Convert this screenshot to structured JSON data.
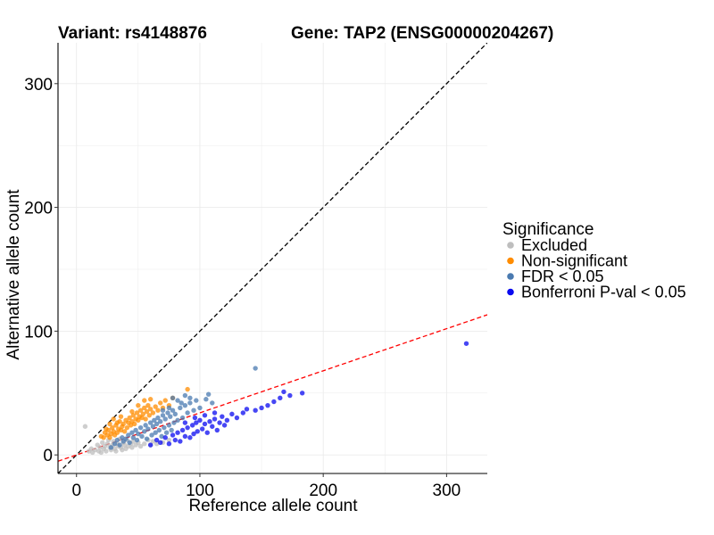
{
  "chart_data": {
    "type": "scatter",
    "title_left": "Variant: rs4148876",
    "title_right": "Gene: TAP2 (ENSG00000204267)",
    "xlabel": "Reference allele count",
    "ylabel": "Alternative allele count",
    "xlim": [
      -15,
      333
    ],
    "ylim": [
      -15,
      333
    ],
    "xticks": [
      0,
      100,
      200,
      300
    ],
    "yticks": [
      0,
      100,
      200,
      300
    ],
    "reference_lines": [
      {
        "name": "identity",
        "slope": 1,
        "intercept": 0,
        "style": "dashed",
        "color": "#000000"
      },
      {
        "name": "ratio-fit",
        "slope": 0.34,
        "intercept": 0,
        "style": "dashed",
        "color": "#ff0000"
      }
    ],
    "legend": {
      "title": "Significance",
      "entries": [
        {
          "label": "Excluded",
          "color": "#bebebe"
        },
        {
          "label": "Non-significant",
          "color": "#ff8c00"
        },
        {
          "label": "FDR < 0.05",
          "color": "#4a7ab0"
        },
        {
          "label": "Bonferroni P-val < 0.05",
          "color": "#0a0af0"
        }
      ]
    },
    "series": [
      {
        "name": "Excluded",
        "color": "#bebebe",
        "points": [
          [
            7,
            23
          ],
          [
            10,
            3
          ],
          [
            12,
            5
          ],
          [
            13,
            2
          ],
          [
            15,
            4
          ],
          [
            17,
            8
          ],
          [
            18,
            3
          ],
          [
            19,
            6
          ],
          [
            20,
            2
          ],
          [
            21,
            10
          ],
          [
            22,
            5
          ],
          [
            23,
            7
          ],
          [
            24,
            3
          ],
          [
            25,
            9
          ],
          [
            26,
            12
          ],
          [
            27,
            6
          ],
          [
            28,
            4
          ],
          [
            29,
            8
          ],
          [
            30,
            11
          ],
          [
            31,
            5
          ],
          [
            32,
            3
          ],
          [
            33,
            9
          ],
          [
            34,
            7
          ],
          [
            35,
            13
          ],
          [
            36,
            6
          ],
          [
            37,
            4
          ],
          [
            38,
            10
          ],
          [
            39,
            8
          ],
          [
            40,
            5
          ],
          [
            41,
            12
          ],
          [
            42,
            7
          ],
          [
            44,
            9
          ],
          [
            45,
            6
          ],
          [
            46,
            11
          ],
          [
            48,
            8
          ],
          [
            50,
            10
          ],
          [
            52,
            7
          ],
          [
            55,
            9
          ],
          [
            58,
            12
          ],
          [
            60,
            8
          ],
          [
            62,
            11
          ],
          [
            65,
            9
          ],
          [
            70,
            10
          ],
          [
            75,
            12
          ]
        ]
      },
      {
        "name": "Non-significant",
        "color": "#ff8c00",
        "points": [
          [
            20,
            15
          ],
          [
            22,
            14
          ],
          [
            23,
            18
          ],
          [
            25,
            16
          ],
          [
            26,
            20
          ],
          [
            27,
            14
          ],
          [
            28,
            17
          ],
          [
            29,
            22
          ],
          [
            30,
            19
          ],
          [
            31,
            16
          ],
          [
            32,
            24
          ],
          [
            33,
            18
          ],
          [
            34,
            21
          ],
          [
            35,
            27
          ],
          [
            36,
            20
          ],
          [
            37,
            23
          ],
          [
            38,
            25
          ],
          [
            39,
            19
          ],
          [
            40,
            28
          ],
          [
            41,
            22
          ],
          [
            42,
            26
          ],
          [
            43,
            30
          ],
          [
            44,
            24
          ],
          [
            45,
            27
          ],
          [
            46,
            32
          ],
          [
            47,
            25
          ],
          [
            48,
            29
          ],
          [
            49,
            34
          ],
          [
            50,
            28
          ],
          [
            51,
            31
          ],
          [
            52,
            36
          ],
          [
            53,
            30
          ],
          [
            54,
            33
          ],
          [
            55,
            38
          ],
          [
            56,
            29
          ],
          [
            57,
            35
          ],
          [
            58,
            40
          ],
          [
            59,
            32
          ],
          [
            60,
            37
          ],
          [
            62,
            34
          ],
          [
            64,
            39
          ],
          [
            66,
            36
          ],
          [
            68,
            42
          ],
          [
            70,
            38
          ],
          [
            72,
            44
          ],
          [
            75,
            40
          ],
          [
            78,
            46
          ],
          [
            90,
            53
          ],
          [
            30,
            29
          ],
          [
            33,
            26
          ],
          [
            36,
            31
          ],
          [
            24,
            21
          ],
          [
            27,
            25
          ],
          [
            45,
            35
          ],
          [
            50,
            40
          ],
          [
            55,
            44
          ],
          [
            60,
            45
          ]
        ]
      },
      {
        "name": "FDR < 0.05",
        "color": "#4a7ab0",
        "points": [
          [
            28,
            6
          ],
          [
            31,
            9
          ],
          [
            33,
            12
          ],
          [
            35,
            8
          ],
          [
            37,
            14
          ],
          [
            38,
            11
          ],
          [
            40,
            13
          ],
          [
            42,
            16
          ],
          [
            43,
            10
          ],
          [
            45,
            18
          ],
          [
            46,
            14
          ],
          [
            48,
            20
          ],
          [
            49,
            12
          ],
          [
            50,
            17
          ],
          [
            52,
            22
          ],
          [
            53,
            15
          ],
          [
            55,
            19
          ],
          [
            56,
            24
          ],
          [
            57,
            13
          ],
          [
            58,
            21
          ],
          [
            60,
            26
          ],
          [
            61,
            16
          ],
          [
            62,
            23
          ],
          [
            63,
            28
          ],
          [
            64,
            18
          ],
          [
            65,
            25
          ],
          [
            66,
            30
          ],
          [
            67,
            20
          ],
          [
            68,
            27
          ],
          [
            69,
            15
          ],
          [
            70,
            32
          ],
          [
            71,
            22
          ],
          [
            72,
            29
          ],
          [
            73,
            18
          ],
          [
            74,
            34
          ],
          [
            75,
            24
          ],
          [
            76,
            31
          ],
          [
            77,
            20
          ],
          [
            78,
            36
          ],
          [
            79,
            26
          ],
          [
            80,
            33
          ],
          [
            82,
            28
          ],
          [
            84,
            38
          ],
          [
            86,
            30
          ],
          [
            88,
            40
          ],
          [
            90,
            34
          ],
          [
            92,
            42
          ],
          [
            95,
            36
          ],
          [
            97,
            44
          ],
          [
            100,
            38
          ],
          [
            105,
            45
          ],
          [
            110,
            42
          ],
          [
            78,
            46
          ],
          [
            82,
            44
          ],
          [
            88,
            48
          ],
          [
            107,
            49
          ],
          [
            145,
            70
          ],
          [
            70,
            36
          ],
          [
            75,
            38
          ],
          [
            85,
            42
          ],
          [
            92,
            46
          ]
        ]
      },
      {
        "name": "Bonferroni P-val < 0.05",
        "color": "#0a0af0",
        "points": [
          [
            60,
            8
          ],
          [
            65,
            12
          ],
          [
            68,
            10
          ],
          [
            72,
            14
          ],
          [
            75,
            9
          ],
          [
            78,
            16
          ],
          [
            80,
            12
          ],
          [
            82,
            18
          ],
          [
            84,
            11
          ],
          [
            86,
            20
          ],
          [
            88,
            15
          ],
          [
            90,
            22
          ],
          [
            92,
            14
          ],
          [
            94,
            24
          ],
          [
            95,
            17
          ],
          [
            97,
            26
          ],
          [
            98,
            19
          ],
          [
            100,
            28
          ],
          [
            102,
            21
          ],
          [
            104,
            25
          ],
          [
            106,
            18
          ],
          [
            108,
            27
          ],
          [
            110,
            23
          ],
          [
            112,
            29
          ],
          [
            114,
            20
          ],
          [
            116,
            26
          ],
          [
            118,
            31
          ],
          [
            120,
            24
          ],
          [
            122,
            28
          ],
          [
            126,
            33
          ],
          [
            130,
            30
          ],
          [
            135,
            34
          ],
          [
            138,
            37
          ],
          [
            145,
            36
          ],
          [
            150,
            38
          ],
          [
            155,
            40
          ],
          [
            160,
            43
          ],
          [
            165,
            46
          ],
          [
            168,
            51
          ],
          [
            173,
            48
          ],
          [
            183,
            50
          ],
          [
            316,
            90
          ],
          [
            88,
            26
          ],
          [
            96,
            30
          ],
          [
            104,
            32
          ],
          [
            112,
            34
          ]
        ]
      }
    ]
  }
}
